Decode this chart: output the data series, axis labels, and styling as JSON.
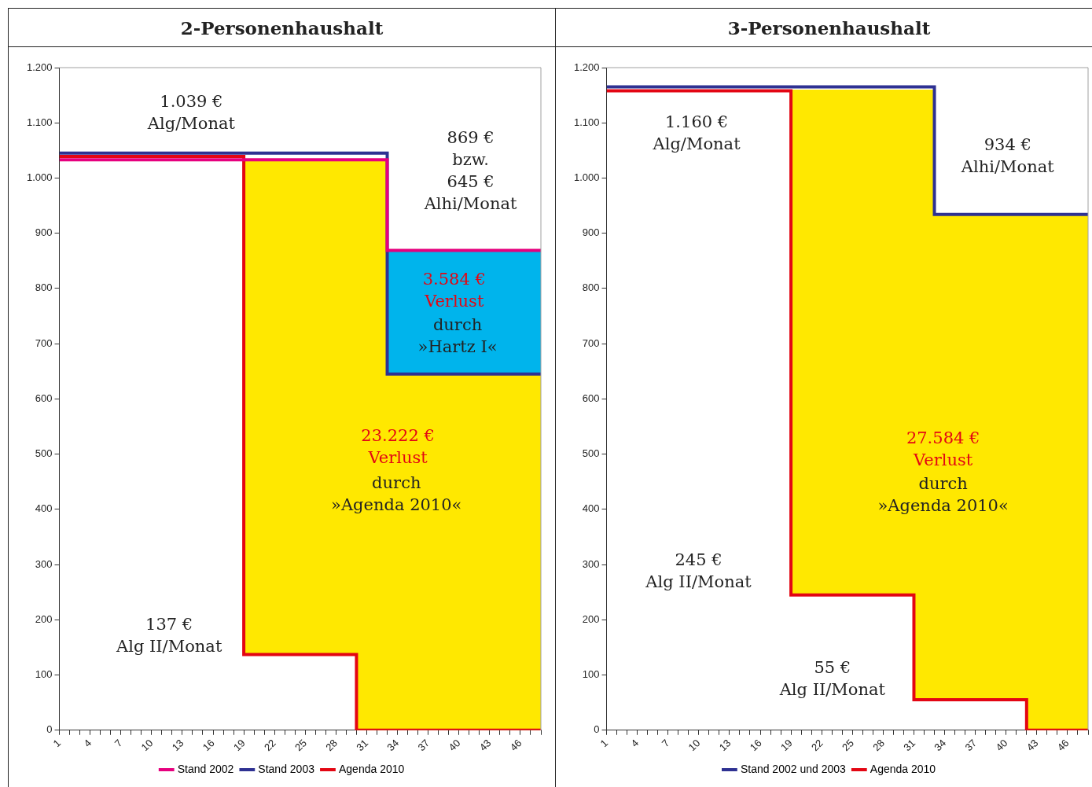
{
  "chart_data": [
    {
      "type": "step",
      "title": "2-Personenhaushalt",
      "legend": "bottom",
      "grid": false,
      "marker": "none",
      "xlim": [
        1,
        48
      ],
      "xticks": [
        1,
        {
          "value": 2,
          "label": null
        },
        {
          "value": 3,
          "label": null
        },
        4,
        {
          "value": 5,
          "label": null
        },
        {
          "value": 6,
          "label": null
        },
        7,
        {
          "value": 8,
          "label": null
        },
        {
          "value": 9,
          "label": null
        },
        10,
        {
          "value": 11,
          "label": null
        },
        {
          "value": 12,
          "label": null
        },
        13,
        {
          "value": 14,
          "label": null
        },
        {
          "value": 15,
          "label": null
        },
        16,
        {
          "value": 17,
          "label": null
        },
        {
          "value": 18,
          "label": null
        },
        19,
        {
          "value": 20,
          "label": null
        },
        {
          "value": 21,
          "label": null
        },
        22,
        {
          "value": 23,
          "label": null
        },
        {
          "value": 24,
          "label": null
        },
        25,
        {
          "value": 26,
          "label": null
        },
        {
          "value": 27,
          "label": null
        },
        28,
        {
          "value": 29,
          "label": null
        },
        {
          "value": 30,
          "label": null
        },
        31,
        {
          "value": 32,
          "label": null
        },
        {
          "value": 33,
          "label": null
        },
        34,
        {
          "value": 35,
          "label": null
        },
        {
          "value": 36,
          "label": null
        },
        37,
        {
          "value": 38,
          "label": null
        },
        {
          "value": 39,
          "label": null
        },
        40,
        {
          "value": 41,
          "label": null
        },
        {
          "value": 42,
          "label": null
        },
        43,
        {
          "value": 44,
          "label": null
        },
        {
          "value": 45,
          "label": null
        },
        46,
        {
          "value": 47,
          "label": null
        },
        {
          "value": 48,
          "label": null
        }
      ],
      "ylim": [
        0,
        1200
      ],
      "yticks": [
        0,
        100,
        200,
        300,
        400,
        500,
        600,
        700,
        800,
        900,
        {
          "value": 1000,
          "label": "1.000"
        },
        {
          "value": 1100,
          "label": "1.100"
        },
        {
          "value": 1200,
          "label": "1.200"
        }
      ],
      "series": [
        {
          "type": "area",
          "color": "#00b4ec",
          "x": [
            33,
            48
          ],
          "values": [
            869,
            869
          ]
        },
        {
          "type": "area",
          "color": "#ffe800",
          "x": [
            19,
            30,
            33,
            48
          ],
          "values": [
            1032,
            1032,
            645,
            645
          ]
        },
        {
          "name": "Stand 2002",
          "color": "#e6007e",
          "x": [
            1,
            33,
            48
          ],
          "values": [
            1033,
            869,
            869
          ]
        },
        {
          "name": "Stand 2003",
          "color": "#2e3192",
          "x": [
            1,
            33,
            48
          ],
          "values": [
            1045,
            645,
            645
          ]
        },
        {
          "name": "Agenda 2010",
          "color": "#e30613",
          "x": [
            1,
            19,
            30,
            48
          ],
          "values": [
            1039,
            137,
            0,
            0
          ]
        }
      ],
      "annotations": [
        "1.039 €\nAlg/Monat",
        "869 €\nbzw.\n645 €\nAlhi/Monat",
        "3.584 €\nVerlust",
        "durch\n»Hartz I«",
        "23.222 €\nVerlust",
        "durch\n»Agenda 2010«",
        "137 €\nAlg II/Monat"
      ]
    },
    {
      "type": "step",
      "title": "3-Personenhaushalt",
      "legend": "bottom",
      "grid": false,
      "marker": "none",
      "xlim": [
        1,
        48
      ],
      "xticks": [
        1,
        {
          "value": 2,
          "label": null
        },
        {
          "value": 3,
          "label": null
        },
        4,
        {
          "value": 5,
          "label": null
        },
        {
          "value": 6,
          "label": null
        },
        7,
        {
          "value": 8,
          "label": null
        },
        {
          "value": 9,
          "label": null
        },
        10,
        {
          "value": 11,
          "label": null
        },
        {
          "value": 12,
          "label": null
        },
        13,
        {
          "value": 14,
          "label": null
        },
        {
          "value": 15,
          "label": null
        },
        16,
        {
          "value": 17,
          "label": null
        },
        {
          "value": 18,
          "label": null
        },
        19,
        {
          "value": 20,
          "label": null
        },
        {
          "value": 21,
          "label": null
        },
        22,
        {
          "value": 23,
          "label": null
        },
        {
          "value": 24,
          "label": null
        },
        25,
        {
          "value": 26,
          "label": null
        },
        {
          "value": 27,
          "label": null
        },
        28,
        {
          "value": 29,
          "label": null
        },
        {
          "value": 30,
          "label": null
        },
        31,
        {
          "value": 32,
          "label": null
        },
        {
          "value": 33,
          "label": null
        },
        34,
        {
          "value": 35,
          "label": null
        },
        {
          "value": 36,
          "label": null
        },
        37,
        {
          "value": 38,
          "label": null
        },
        {
          "value": 39,
          "label": null
        },
        40,
        {
          "value": 41,
          "label": null
        },
        {
          "value": 42,
          "label": null
        },
        43,
        {
          "value": 44,
          "label": null
        },
        {
          "value": 45,
          "label": null
        },
        46,
        {
          "value": 47,
          "label": null
        },
        {
          "value": 48,
          "label": null
        }
      ],
      "ylim": [
        0,
        1200
      ],
      "yticks": [
        0,
        100,
        200,
        300,
        400,
        500,
        600,
        700,
        800,
        900,
        {
          "value": 1000,
          "label": "1.000"
        },
        {
          "value": 1100,
          "label": "1.100"
        },
        {
          "value": 1200,
          "label": "1.200"
        }
      ],
      "series": [
        {
          "type": "area",
          "color": "#ffe800",
          "x": [
            19,
            31,
            33,
            42,
            48
          ],
          "values": [
            1160,
            1160,
            934,
            934,
            934
          ]
        },
        {
          "name": "Stand 2002 und 2003",
          "color": "#2e3192",
          "x": [
            1,
            33,
            48
          ],
          "values": [
            1165,
            934,
            934
          ]
        },
        {
          "name": "Agenda 2010",
          "color": "#e30613",
          "x": [
            1,
            19,
            31,
            42,
            48
          ],
          "values": [
            1158,
            245,
            55,
            0,
            0
          ]
        }
      ],
      "annotations": [
        "1.160 €\nAlg/Monat",
        "934 €\nAlhi/Monat",
        "27.584 €\nVerlust",
        "durch\n»Agenda 2010«",
        "245 €\nAlg II/Monat",
        "55 €\nAlg II/Monat"
      ]
    }
  ]
}
